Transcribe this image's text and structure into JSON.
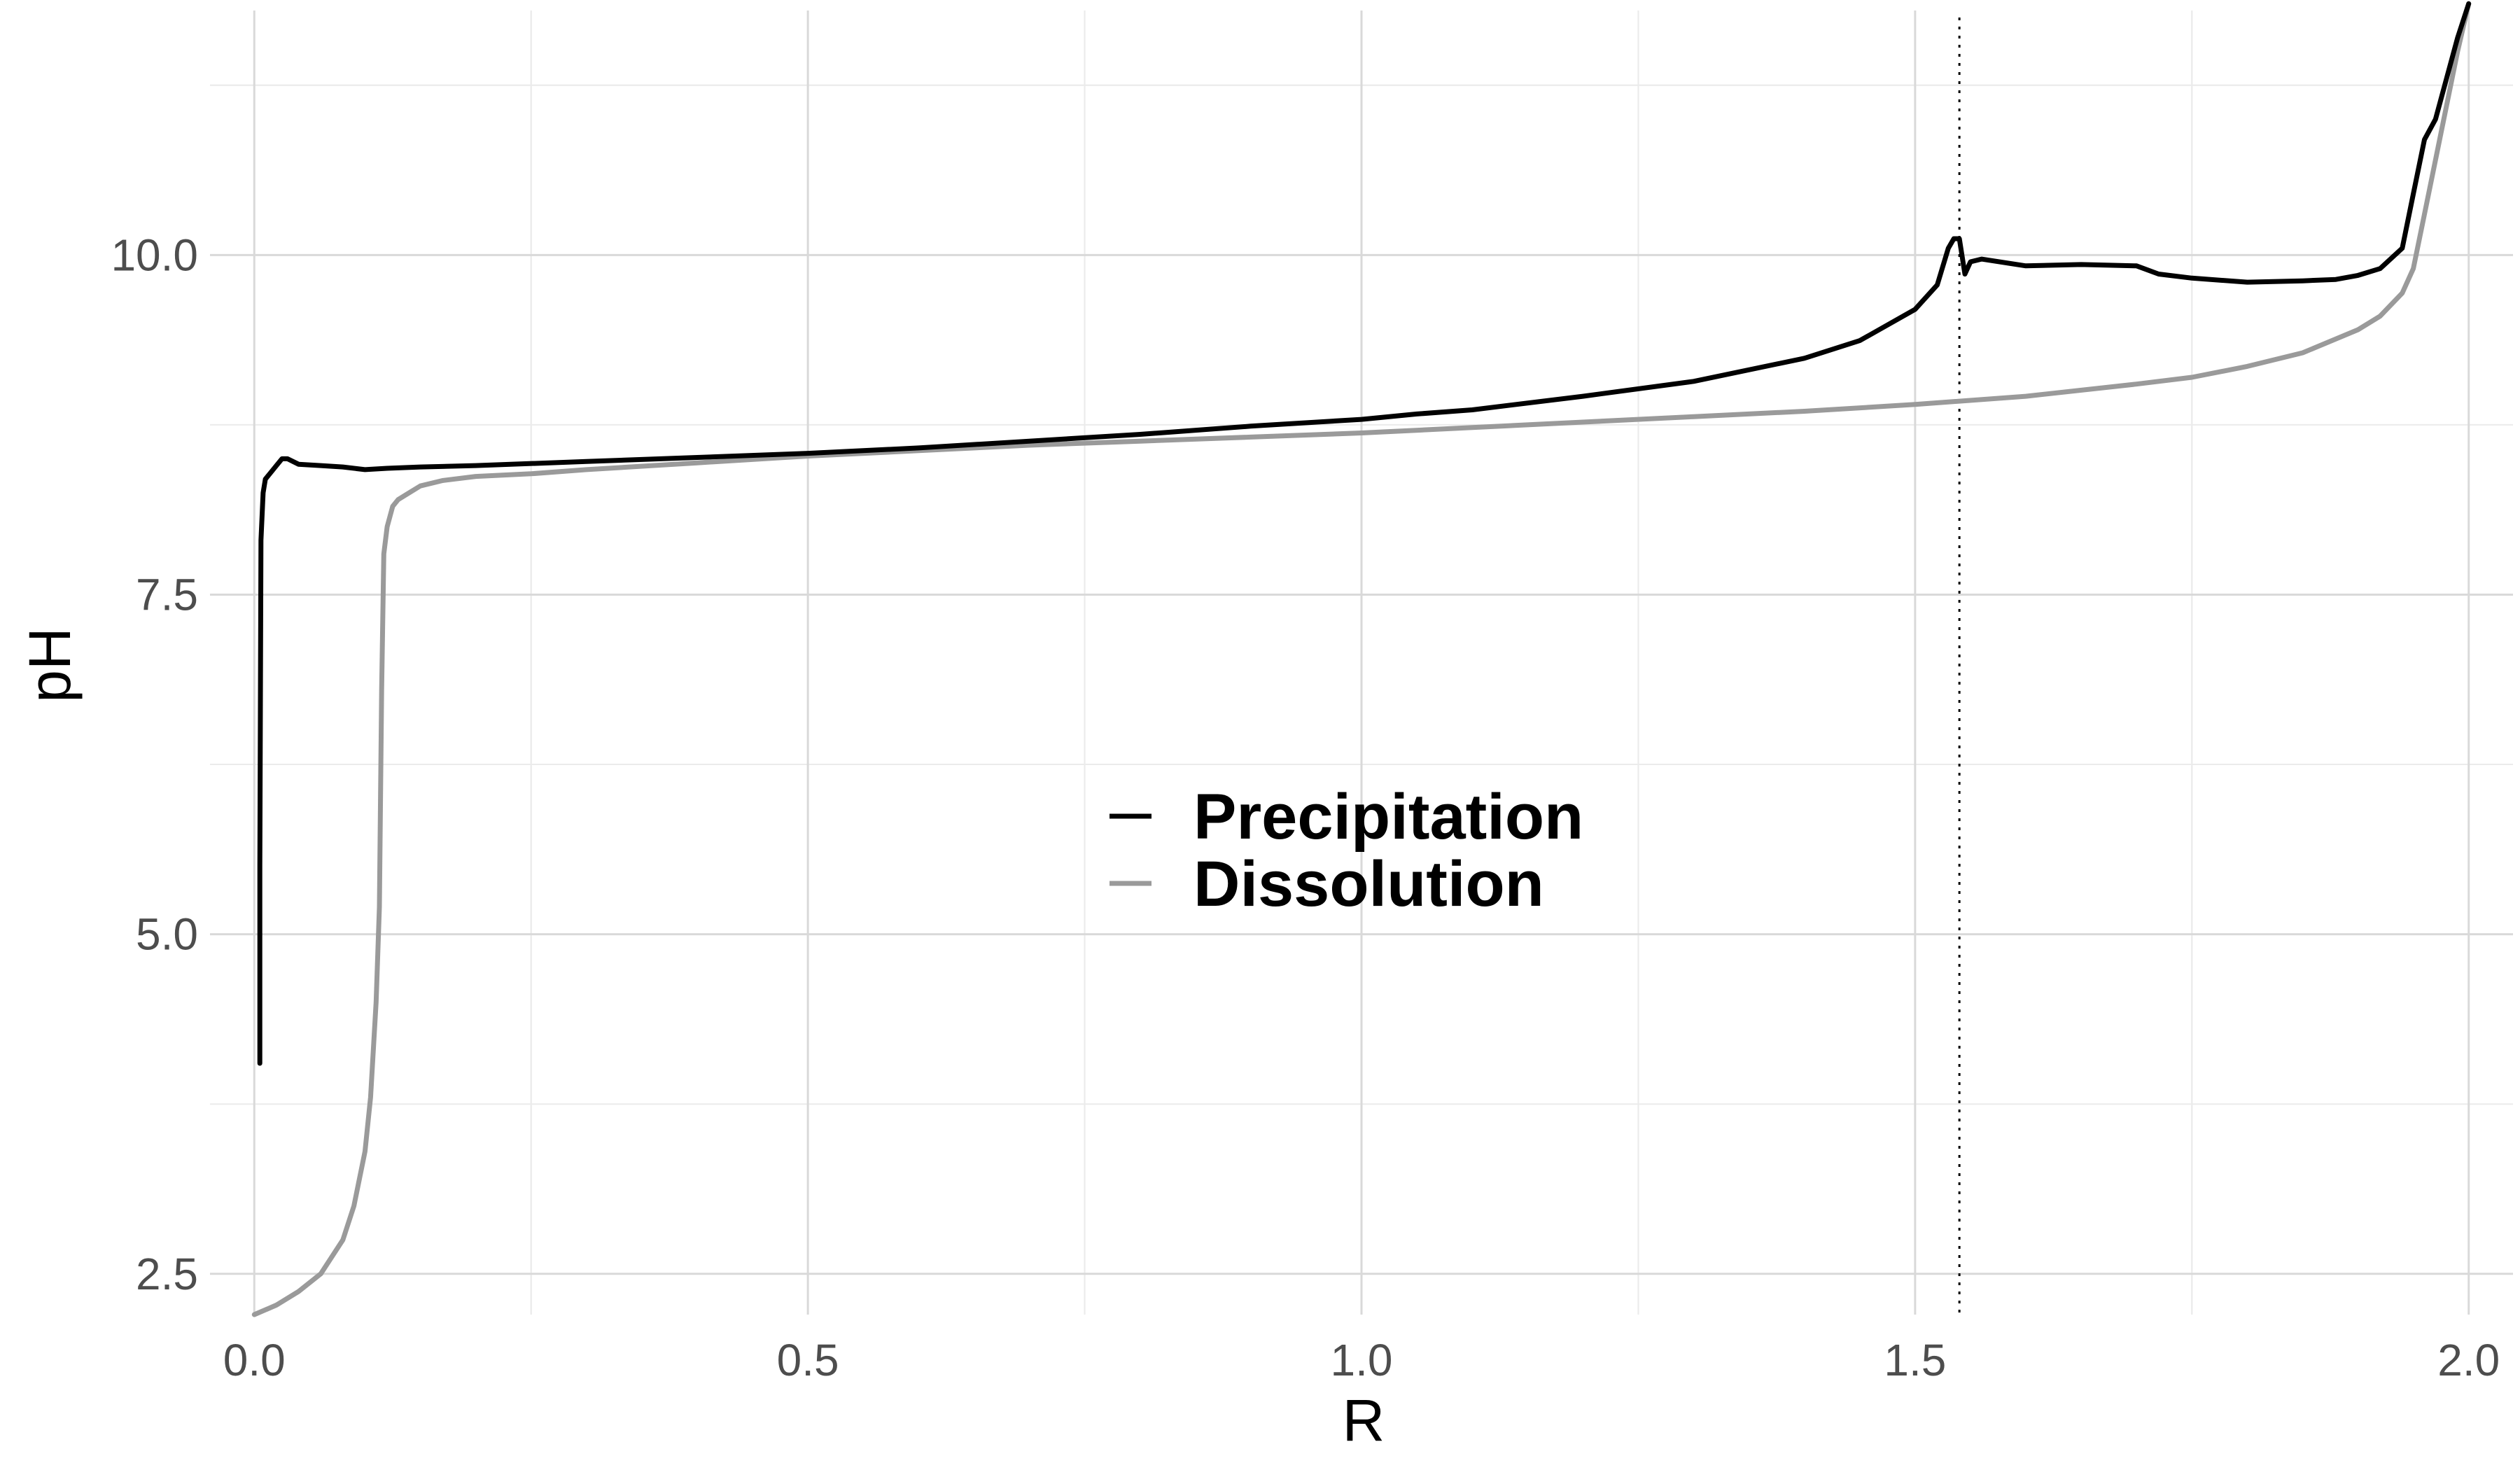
{
  "chart_data": {
    "type": "line",
    "title": "",
    "xlabel": "R",
    "ylabel": "pH",
    "xlim": [
      -0.04,
      2.04
    ],
    "ylim": [
      2.2,
      11.8
    ],
    "xticks": [
      0.0,
      0.5,
      1.0,
      1.5,
      2.0
    ],
    "xtick_labels": [
      "0.0",
      "0.5",
      "1.0",
      "1.5",
      "2.0"
    ],
    "yticks": [
      2.5,
      5.0,
      7.5,
      10.0
    ],
    "ytick_labels": [
      "2.5",
      "5.0",
      "7.5",
      "10.0"
    ],
    "grid": true,
    "legend_position": "center",
    "reference_lines": [
      {
        "axis": "x",
        "value": 1.54,
        "style": "dotted"
      }
    ],
    "series": [
      {
        "name": "Precipitation",
        "color": "#000000",
        "x": [
          0.005,
          0.005,
          0.006,
          0.008,
          0.01,
          0.015,
          0.02,
          0.025,
          0.03,
          0.04,
          0.06,
          0.08,
          0.1,
          0.12,
          0.15,
          0.2,
          0.3,
          0.4,
          0.5,
          0.6,
          0.7,
          0.8,
          0.9,
          1.0,
          1.05,
          1.1,
          1.2,
          1.3,
          1.4,
          1.45,
          1.5,
          1.52,
          1.53,
          1.535,
          1.54,
          1.545,
          1.55,
          1.56,
          1.6,
          1.65,
          1.7,
          1.72,
          1.75,
          1.8,
          1.85,
          1.88,
          1.9,
          1.92,
          1.94,
          1.95,
          1.96,
          1.97,
          1.98,
          1.99,
          2.0
        ],
        "y": [
          4.05,
          5.5,
          7.9,
          8.25,
          8.35,
          8.4,
          8.45,
          8.5,
          8.5,
          8.46,
          8.45,
          8.44,
          8.42,
          8.43,
          8.44,
          8.45,
          8.48,
          8.51,
          8.54,
          8.58,
          8.63,
          8.68,
          8.74,
          8.79,
          8.83,
          8.86,
          8.96,
          9.07,
          9.24,
          9.37,
          9.6,
          9.78,
          10.05,
          10.12,
          10.12,
          9.86,
          9.95,
          9.97,
          9.92,
          9.93,
          9.92,
          9.86,
          9.83,
          9.8,
          9.81,
          9.82,
          9.85,
          9.9,
          10.05,
          10.45,
          10.85,
          11.0,
          11.3,
          11.6,
          11.85
        ]
      },
      {
        "name": "Dissolution",
        "color": "#9a9a9a",
        "x": [
          0.0,
          0.02,
          0.04,
          0.06,
          0.08,
          0.09,
          0.1,
          0.105,
          0.11,
          0.113,
          0.115,
          0.117,
          0.12,
          0.125,
          0.13,
          0.14,
          0.15,
          0.17,
          0.2,
          0.25,
          0.3,
          0.4,
          0.5,
          0.6,
          0.7,
          0.8,
          0.9,
          1.0,
          1.1,
          1.2,
          1.3,
          1.4,
          1.5,
          1.6,
          1.7,
          1.75,
          1.8,
          1.85,
          1.9,
          1.92,
          1.94,
          1.95,
          1.96,
          1.97,
          1.98,
          1.99,
          2.0
        ],
        "y": [
          2.2,
          2.27,
          2.37,
          2.5,
          2.75,
          3.0,
          3.4,
          3.8,
          4.5,
          5.2,
          6.8,
          7.8,
          8.0,
          8.15,
          8.2,
          8.25,
          8.3,
          8.34,
          8.37,
          8.39,
          8.42,
          8.47,
          8.52,
          8.56,
          8.6,
          8.63,
          8.66,
          8.69,
          8.73,
          8.77,
          8.81,
          8.85,
          8.9,
          8.96,
          9.05,
          9.1,
          9.18,
          9.28,
          9.45,
          9.55,
          9.72,
          9.9,
          10.3,
          10.7,
          11.1,
          11.5,
          11.85
        ]
      }
    ]
  }
}
